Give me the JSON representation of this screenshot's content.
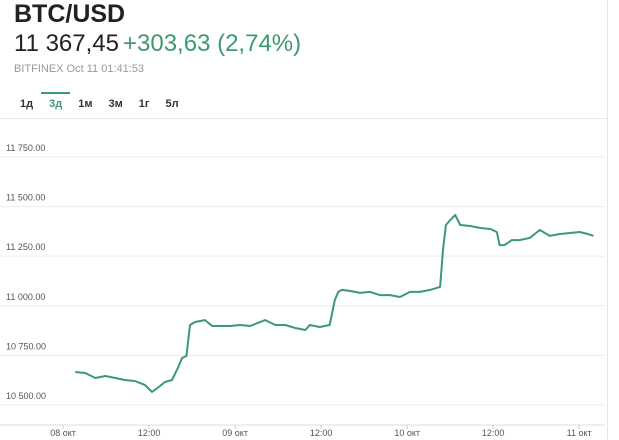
{
  "header": {
    "title": "BTC/USD",
    "price": "11 367,45",
    "change": "+303,63 (2,74%)",
    "source": "BITFINEX Oct 11 01:41:53"
  },
  "tabs": {
    "items": [
      "1д",
      "3д",
      "1м",
      "3м",
      "1г",
      "5л"
    ],
    "active": 1
  },
  "chart_data": {
    "type": "line",
    "x": [
      1.7,
      3.1,
      4.5,
      5.9,
      7.3,
      8.6,
      10.0,
      11.4,
      12.4,
      13.2,
      14.2,
      15.2,
      16.0,
      16.6,
      17.2,
      17.7,
      18.4,
      19.8,
      20.8,
      21.9,
      23.3,
      24.7,
      26.1,
      27.5,
      28.2,
      29.6,
      31.0,
      32.4,
      33.8,
      34.4,
      35.8,
      37.2,
      37.9,
      38.4,
      38.9,
      40.0,
      41.4,
      42.8,
      44.2,
      45.6,
      47.0,
      48.4,
      49.8,
      51.2,
      52.6,
      53.0,
      53.4,
      54.0,
      54.7,
      55.4,
      56.8,
      58.2,
      59.6,
      60.5,
      60.9,
      61.6,
      62.6,
      63.7,
      65.1,
      66.5,
      67.9,
      69.3,
      70.7,
      72.1,
      73.2,
      74.0
    ],
    "series": [
      {
        "name": "BTC/USD",
        "color": "#3d9970",
        "values": [
          10666,
          10661,
          10636,
          10646,
          10636,
          10626,
          10621,
          10601,
          10566,
          10586,
          10616,
          10626,
          10686,
          10737,
          10747,
          10903,
          10918,
          10928,
          10898,
          10898,
          10898,
          10903,
          10898,
          10918,
          10928,
          10903,
          10903,
          10888,
          10878,
          10903,
          10893,
          10903,
          11029,
          11070,
          11080,
          11075,
          11065,
          11070,
          11054,
          11054,
          11044,
          11070,
          11070,
          11080,
          11095,
          11281,
          11407,
          11432,
          11458,
          11407,
          11402,
          11392,
          11387,
          11372,
          11306,
          11306,
          11331,
          11331,
          11342,
          11382,
          11352,
          11362,
          11367,
          11372,
          11362,
          11352
        ]
      }
    ],
    "xlim": [
      -8.8,
      75.6
    ],
    "xticks": [
      {
        "value": 0,
        "label": "08 окт"
      },
      {
        "value": 12,
        "label": "12:00"
      },
      {
        "value": 24,
        "label": "09 окт"
      },
      {
        "value": 36,
        "label": "12:00"
      },
      {
        "value": 48,
        "label": "10 окт"
      },
      {
        "value": 60,
        "label": "12:00"
      },
      {
        "value": 72,
        "label": "11 окт"
      }
    ],
    "ylim": [
      10399,
      11886
    ],
    "yticks": [
      {
        "value": 10500,
        "label": "10 500.00"
      },
      {
        "value": 10750,
        "label": "10 750.00"
      },
      {
        "value": 11000,
        "label": "11 000.00"
      },
      {
        "value": 11250,
        "label": "11 250.00"
      },
      {
        "value": 11500,
        "label": "11 500.00"
      },
      {
        "value": 11750,
        "label": "11 750.00"
      }
    ],
    "grid": true
  }
}
